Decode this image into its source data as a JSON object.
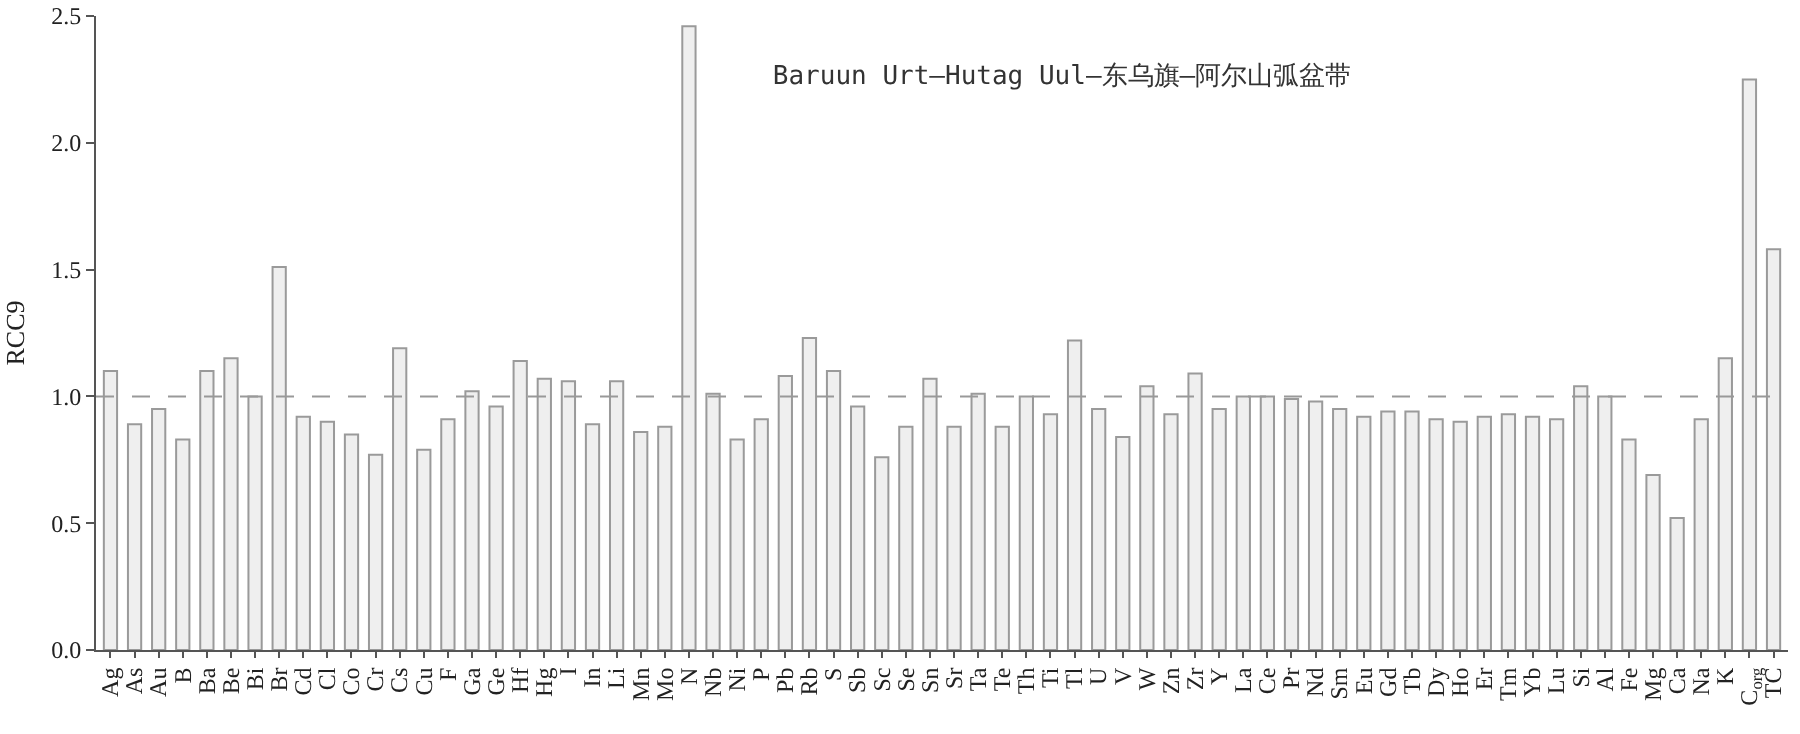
{
  "chart_data": {
    "type": "bar",
    "title": "Baruun Urt—Hutag Uul—东乌旗—阿尔山弧盆带",
    "ylabel": "RCC9",
    "categories": [
      "Ag",
      "As",
      "Au",
      "B",
      "Ba",
      "Be",
      "Bi",
      "Br",
      "Cd",
      "Cl",
      "Co",
      "Cr",
      "Cs",
      "Cu",
      "F",
      "Ga",
      "Ge",
      "Hf",
      "Hg",
      "I",
      "In",
      "Li",
      "Mn",
      "Mo",
      "N",
      "Nb",
      "Ni",
      "P",
      "Pb",
      "Rb",
      "S",
      "Sb",
      "Sc",
      "Se",
      "Sn",
      "Sr",
      "Ta",
      "Te",
      "Th",
      "Ti",
      "Tl",
      "U",
      "V",
      "W",
      "Zn",
      "Zr",
      "Y",
      "La",
      "Ce",
      "Pr",
      "Nd",
      "Sm",
      "Eu",
      "Gd",
      "Tb",
      "Dy",
      "Ho",
      "Er",
      "Tm",
      "Yb",
      "Lu",
      "Si",
      "Al",
      "Fe",
      "Mg",
      "Ca",
      "Na",
      "K",
      "C$_{org}$",
      "TC"
    ],
    "values": [
      1.1,
      0.89,
      0.95,
      0.83,
      1.1,
      1.15,
      1.0,
      1.51,
      0.92,
      0.9,
      0.85,
      0.77,
      1.19,
      0.79,
      0.91,
      1.02,
      0.96,
      1.14,
      1.07,
      1.06,
      0.89,
      1.06,
      0.86,
      0.88,
      2.46,
      1.01,
      0.83,
      0.91,
      1.08,
      1.23,
      1.1,
      0.96,
      0.76,
      0.88,
      1.07,
      0.88,
      1.01,
      0.88,
      1.0,
      0.93,
      1.22,
      0.95,
      0.84,
      1.04,
      0.93,
      1.09,
      0.95,
      1.0,
      1.0,
      0.99,
      0.98,
      0.95,
      0.92,
      0.94,
      0.94,
      0.91,
      0.9,
      0.92,
      0.93,
      0.92,
      0.91,
      1.04,
      1.0,
      0.83,
      0.69,
      0.52,
      0.91,
      1.15,
      2.25,
      1.58
    ],
    "color": "#efefef",
    "ylim": [
      0,
      2.5
    ],
    "yticks": [
      {
        "value": 0,
        "label": "0.0"
      },
      {
        "value": 0.5,
        "label": "0.5"
      },
      {
        "value": 1,
        "label": "1.0"
      },
      {
        "value": 1.5,
        "label": "1.5"
      },
      {
        "value": 2,
        "label": "2.0"
      },
      {
        "value": 2.5,
        "label": "2.5"
      }
    ],
    "ref_lines": [
      {
        "axis": "y",
        "value": 1,
        "label": null,
        "color": "#999999",
        "line_style": "dashed"
      }
    ],
    "grid": false,
    "legend": false
  }
}
